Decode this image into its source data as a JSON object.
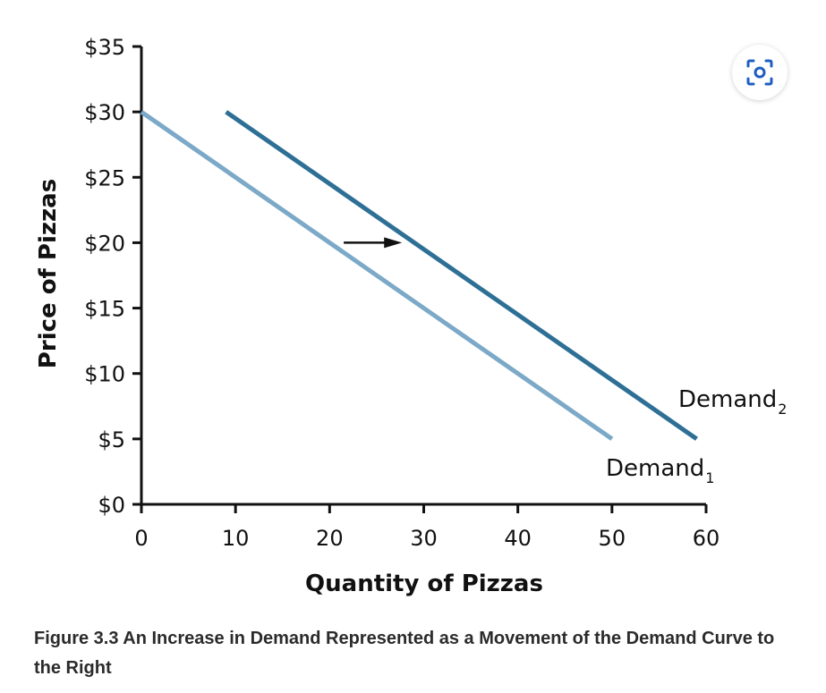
{
  "chart_data": {
    "type": "line",
    "xlabel": "Quantity of Pizzas",
    "ylabel": "Price of Pizzas",
    "xlim": [
      0,
      60
    ],
    "ylim": [
      0,
      35
    ],
    "x_ticks": [
      "0",
      "10",
      "20",
      "30",
      "40",
      "50",
      "60"
    ],
    "x_tick_values": [
      0,
      10,
      20,
      30,
      40,
      50,
      60
    ],
    "y_ticks": [
      "$0",
      "$5",
      "$10",
      "$15",
      "$20",
      "$25",
      "$30",
      "$35"
    ],
    "y_tick_values": [
      0,
      5,
      10,
      15,
      20,
      25,
      30,
      35
    ],
    "grid": false,
    "series": [
      {
        "name": "Demand",
        "subscript": "1",
        "color": "#7ba9c7",
        "points": [
          [
            0,
            30
          ],
          [
            50,
            5
          ]
        ]
      },
      {
        "name": "Demand",
        "subscript": "2",
        "color": "#2e6f96",
        "points": [
          [
            9,
            30
          ],
          [
            59,
            5
          ]
        ]
      }
    ],
    "annotation": {
      "type": "arrow",
      "direction": "right",
      "from": [
        21.5,
        20
      ],
      "to": [
        27.5,
        20
      ],
      "color": "#111111"
    }
  },
  "caption": "Figure 3.3 An Increase in Demand Represented as a Movement of the Demand Curve to the Right",
  "lens_button": {
    "icon": "visual-search-icon"
  }
}
